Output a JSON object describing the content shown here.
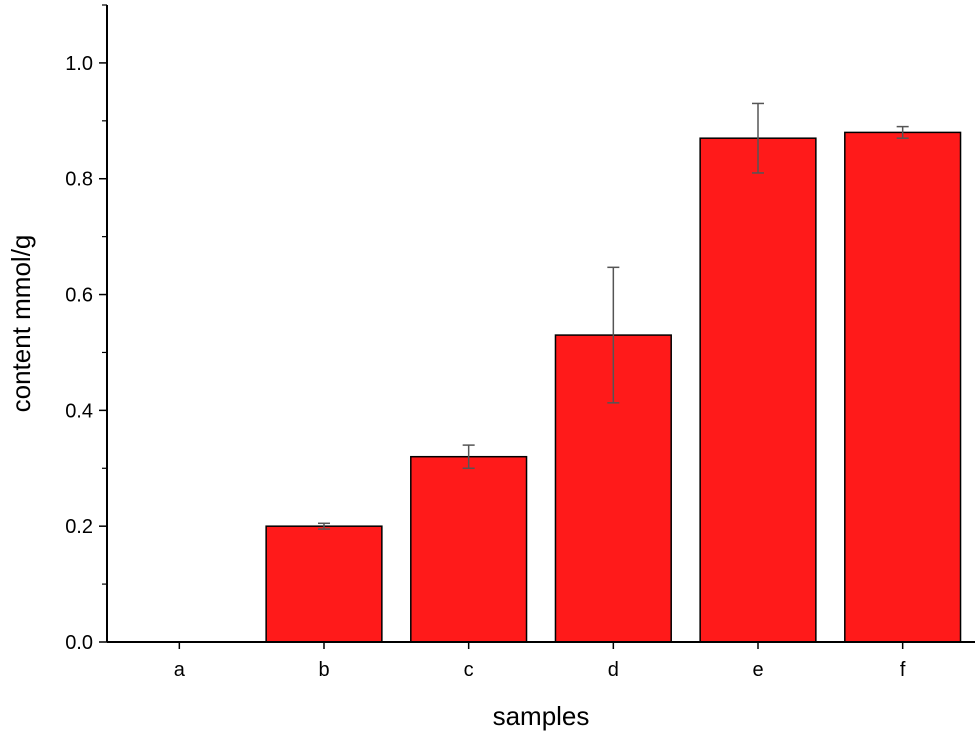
{
  "chart_data": {
    "type": "bar",
    "title": "",
    "xlabel": "samples",
    "ylabel": "content mmol/g",
    "categories": [
      "a",
      "b",
      "c",
      "d",
      "e",
      "f"
    ],
    "values": [
      0.0,
      0.2,
      0.32,
      0.53,
      0.87,
      0.88
    ],
    "errors": [
      0.0,
      0.005,
      0.02,
      0.117,
      0.06,
      0.01
    ],
    "ylim": [
      0,
      1.1
    ],
    "yticks": [
      "0.0",
      "0.2",
      "0.4",
      "0.6",
      "0.8",
      "1.0"
    ],
    "grid": false,
    "bar_color": "#ff1a1a",
    "error_bar_color": "#555555"
  }
}
